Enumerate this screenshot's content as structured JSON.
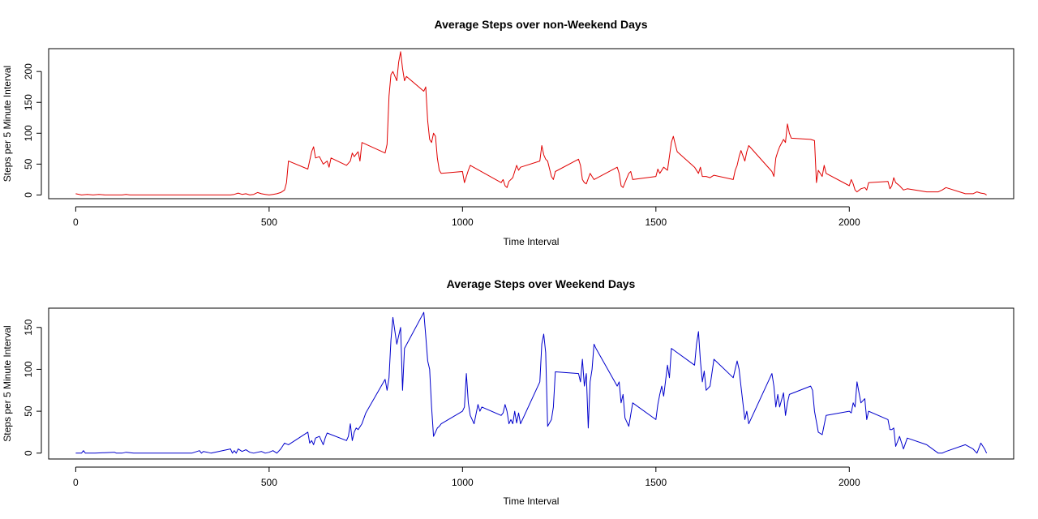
{
  "chart_data": [
    {
      "type": "line",
      "title": "Average Steps over non-Weekend Days",
      "xlabel": "Time Interval",
      "ylabel": "Steps per 5 Minute Interval",
      "xlim": [
        -70,
        2425
      ],
      "ylim": [
        -6,
        237
      ],
      "xticks": [
        0,
        500,
        1000,
        1500,
        2000
      ],
      "yticks": [
        0,
        50,
        100,
        150,
        200
      ],
      "color": "#e00000",
      "grid": false,
      "legend": "none",
      "series": [
        {
          "x": [
            0,
            15,
            30,
            45,
            60,
            75,
            90,
            105,
            120,
            130,
            140,
            160,
            200,
            250,
            300,
            320,
            350,
            400,
            410,
            420,
            430,
            440,
            450,
            460,
            470,
            480,
            490,
            500,
            510,
            520,
            530,
            540,
            545,
            550,
            600,
            610,
            615,
            620,
            630,
            640,
            650,
            655,
            660,
            700,
            710,
            715,
            720,
            730,
            735,
            740,
            800,
            805,
            810,
            815,
            820,
            830,
            835,
            840,
            845,
            850,
            855,
            900,
            905,
            910,
            915,
            920,
            925,
            930,
            935,
            940,
            945,
            1000,
            1005,
            1010,
            1015,
            1020,
            1100,
            1105,
            1110,
            1115,
            1120,
            1130,
            1140,
            1145,
            1150,
            1200,
            1205,
            1210,
            1215,
            1220,
            1230,
            1235,
            1240,
            1300,
            1305,
            1310,
            1315,
            1320,
            1330,
            1335,
            1340,
            1400,
            1405,
            1410,
            1415,
            1420,
            1430,
            1435,
            1440,
            1500,
            1505,
            1510,
            1520,
            1530,
            1540,
            1545,
            1550,
            1555,
            1600,
            1610,
            1615,
            1620,
            1630,
            1640,
            1650,
            1700,
            1705,
            1710,
            1715,
            1720,
            1730,
            1735,
            1740,
            1800,
            1805,
            1810,
            1815,
            1820,
            1830,
            1835,
            1840,
            1845,
            1850,
            1900,
            1910,
            1915,
            1920,
            1930,
            1935,
            1940,
            2000,
            2005,
            2010,
            2015,
            2020,
            2030,
            2040,
            2045,
            2050,
            2100,
            2105,
            2110,
            2115,
            2120,
            2130,
            2140,
            2150,
            2200,
            2230,
            2240,
            2250,
            2300,
            2320,
            2330,
            2340,
            2350,
            2355
          ],
          "values": [
            2,
            0,
            1,
            0,
            1,
            0,
            0,
            0,
            0,
            1,
            0,
            0,
            0,
            0,
            0,
            0,
            0,
            0,
            1,
            3,
            1,
            2,
            0,
            1,
            4,
            2,
            1,
            0,
            1,
            2,
            4,
            8,
            20,
            55,
            42,
            70,
            78,
            60,
            62,
            50,
            55,
            45,
            60,
            48,
            55,
            68,
            62,
            70,
            55,
            85,
            68,
            82,
            160,
            195,
            200,
            185,
            215,
            232,
            205,
            185,
            192,
            168,
            175,
            120,
            90,
            85,
            100,
            95,
            60,
            40,
            35,
            38,
            20,
            30,
            40,
            48,
            20,
            25,
            15,
            12,
            22,
            28,
            48,
            40,
            45,
            55,
            80,
            65,
            58,
            55,
            30,
            25,
            38,
            58,
            48,
            25,
            20,
            18,
            35,
            30,
            25,
            45,
            35,
            15,
            12,
            20,
            35,
            38,
            25,
            30,
            42,
            35,
            45,
            40,
            85,
            95,
            82,
            70,
            45,
            35,
            45,
            30,
            30,
            28,
            32,
            25,
            40,
            48,
            62,
            72,
            55,
            70,
            80,
            38,
            30,
            60,
            70,
            78,
            90,
            85,
            115,
            100,
            92,
            90,
            88,
            20,
            40,
            30,
            48,
            35,
            15,
            25,
            18,
            8,
            5,
            10,
            12,
            8,
            20,
            22,
            10,
            15,
            28,
            20,
            15,
            8,
            10,
            5,
            5,
            8,
            12,
            2,
            2,
            5,
            3,
            2,
            0
          ],
          "name": ""
        }
      ]
    },
    {
      "type": "line",
      "title": "Average Steps over Weekend Days",
      "xlabel": "Time Interval",
      "ylabel": "Steps per 5 Minute Interval",
      "xlim": [
        -70,
        2425
      ],
      "ylim": [
        -7,
        173
      ],
      "xticks": [
        0,
        500,
        1000,
        1500,
        2000
      ],
      "yticks": [
        0,
        50,
        100,
        150
      ],
      "color": "#0000cc",
      "grid": false,
      "legend": "none",
      "series": [
        {
          "x": [
            0,
            15,
            20,
            25,
            30,
            50,
            100,
            105,
            120,
            130,
            150,
            200,
            300,
            320,
            325,
            330,
            340,
            350,
            400,
            405,
            410,
            415,
            420,
            430,
            440,
            450,
            460,
            470,
            480,
            490,
            500,
            510,
            520,
            530,
            540,
            550,
            600,
            605,
            610,
            615,
            620,
            630,
            640,
            645,
            650,
            700,
            705,
            710,
            715,
            720,
            725,
            730,
            740,
            750,
            800,
            805,
            810,
            815,
            820,
            830,
            835,
            840,
            845,
            850,
            900,
            905,
            910,
            915,
            920,
            925,
            930,
            935,
            940,
            945,
            1000,
            1005,
            1010,
            1015,
            1020,
            1030,
            1040,
            1045,
            1050,
            1100,
            1105,
            1110,
            1115,
            1120,
            1125,
            1130,
            1135,
            1140,
            1145,
            1150,
            1200,
            1205,
            1210,
            1215,
            1220,
            1230,
            1235,
            1240,
            1300,
            1305,
            1310,
            1315,
            1320,
            1325,
            1330,
            1335,
            1340,
            1345,
            1400,
            1405,
            1410,
            1415,
            1420,
            1430,
            1440,
            1500,
            1505,
            1510,
            1515,
            1520,
            1530,
            1535,
            1540,
            1600,
            1605,
            1610,
            1615,
            1620,
            1625,
            1630,
            1640,
            1650,
            1700,
            1705,
            1710,
            1715,
            1720,
            1730,
            1735,
            1740,
            1800,
            1805,
            1810,
            1815,
            1820,
            1830,
            1835,
            1840,
            1845,
            1900,
            1905,
            1910,
            1920,
            1930,
            1940,
            2000,
            2005,
            2010,
            2015,
            2020,
            2030,
            2040,
            2045,
            2050,
            2100,
            2105,
            2110,
            2115,
            2120,
            2130,
            2140,
            2150,
            2200,
            2230,
            2240,
            2250,
            2300,
            2320,
            2330,
            2340,
            2350,
            2355
          ],
          "values": [
            0,
            0,
            3,
            0,
            0,
            0,
            1,
            0,
            0,
            1,
            0,
            0,
            0,
            3,
            0,
            2,
            1,
            0,
            5,
            0,
            3,
            0,
            5,
            2,
            4,
            1,
            0,
            1,
            2,
            0,
            1,
            3,
            0,
            5,
            12,
            10,
            25,
            12,
            15,
            10,
            18,
            20,
            10,
            18,
            24,
            15,
            20,
            35,
            15,
            25,
            30,
            28,
            35,
            48,
            88,
            75,
            90,
            135,
            162,
            130,
            140,
            150,
            75,
            125,
            168,
            140,
            110,
            100,
            55,
            20,
            25,
            30,
            32,
            35,
            50,
            55,
            95,
            60,
            45,
            35,
            58,
            50,
            55,
            45,
            48,
            58,
            50,
            35,
            40,
            35,
            50,
            36,
            48,
            35,
            85,
            130,
            142,
            120,
            32,
            40,
            55,
            97,
            95,
            85,
            112,
            80,
            95,
            30,
            85,
            100,
            130,
            125,
            80,
            85,
            60,
            70,
            42,
            32,
            60,
            40,
            58,
            70,
            80,
            68,
            105,
            90,
            125,
            105,
            130,
            145,
            110,
            85,
            98,
            75,
            80,
            112,
            90,
            100,
            110,
            100,
            80,
            40,
            50,
            35,
            95,
            80,
            55,
            70,
            55,
            72,
            45,
            60,
            70,
            80,
            75,
            50,
            25,
            22,
            45,
            50,
            48,
            60,
            55,
            85,
            60,
            65,
            40,
            50,
            40,
            28,
            28,
            30,
            8,
            20,
            5,
            18,
            10,
            0,
            0,
            2,
            10,
            5,
            0,
            12,
            5,
            0
          ],
          "name": ""
        }
      ]
    }
  ]
}
